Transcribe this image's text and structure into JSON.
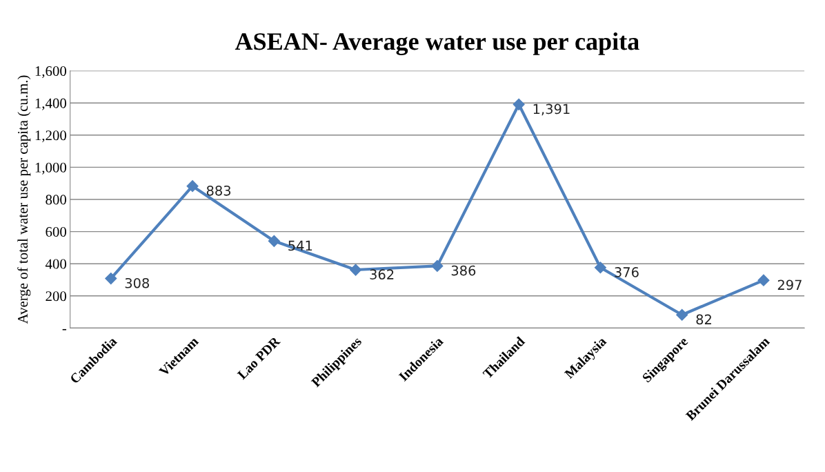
{
  "chart_data": {
    "type": "line",
    "title": "ASEAN- Average water use per capita",
    "ylabel": "Averge of total water use per capita (cu.m.)",
    "categories": [
      "Cambodia",
      "Vietnam",
      "Lao PDR",
      "Philippines",
      "Indonesia",
      "Thailand",
      "Malaysia",
      "Singapore",
      "Brunei Darussalam"
    ],
    "values": [
      308,
      883,
      541,
      362,
      386,
      1391,
      376,
      82,
      297
    ],
    "value_labels": [
      "308",
      "883",
      "541",
      "362",
      "386",
      "1,391",
      "376",
      "82",
      "297"
    ],
    "color": "#4f81bd",
    "marker": "diamond",
    "line_style": "solid",
    "ylim": [
      0,
      1600
    ],
    "yticks": [
      {
        "value": 0,
        "label": "-"
      },
      200,
      400,
      600,
      800,
      {
        "value": 1000,
        "label": "1,000"
      },
      {
        "value": 1200,
        "label": "1,200"
      },
      {
        "value": 1400,
        "label": "1,400"
      },
      {
        "value": 1600,
        "label": "1,600"
      }
    ],
    "grid": "y",
    "legend": false
  }
}
